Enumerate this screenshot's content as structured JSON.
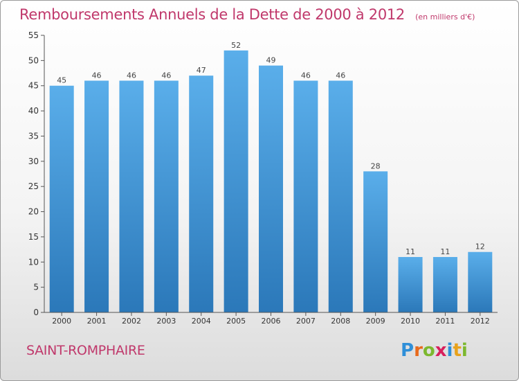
{
  "chart_data": {
    "type": "bar",
    "title": "Remboursements Annuels de la Dette de 2000 à 2012",
    "subtitle": "(en milliers d'€)",
    "categories": [
      "2000",
      "2001",
      "2002",
      "2003",
      "2004",
      "2005",
      "2006",
      "2007",
      "2008",
      "2009",
      "2010",
      "2011",
      "2012"
    ],
    "values": [
      45,
      46,
      46,
      46,
      47,
      52,
      49,
      46,
      46,
      28,
      11,
      11,
      12
    ],
    "ylim": [
      0,
      55
    ],
    "yticks": [
      0,
      5,
      10,
      15,
      20,
      25,
      30,
      35,
      40,
      45,
      50,
      55
    ],
    "grid": false,
    "xlabel": "",
    "ylabel": "",
    "bar_color": "#3d8fd6"
  },
  "footer": {
    "city": "SAINT-ROMPHAIRE",
    "logo_letters": [
      "P",
      "r",
      "o",
      "x",
      "i",
      "t",
      "i"
    ],
    "logo_colors": [
      "#2f8fd8",
      "#e86a1c",
      "#7cb82f",
      "#d81f5c",
      "#2f8fd8",
      "#e8a21c",
      "#7cb82f"
    ]
  },
  "colors": {
    "accent": "#c0386b",
    "axis": "#555555"
  }
}
